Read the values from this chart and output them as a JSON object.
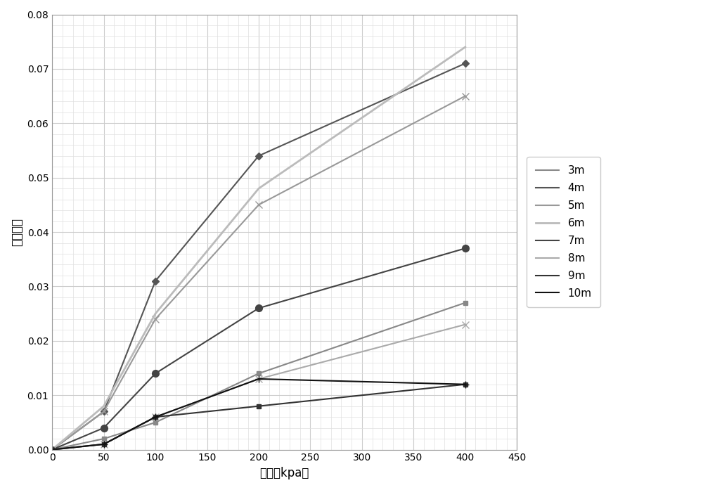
{
  "x": [
    0,
    50,
    100,
    200,
    400
  ],
  "series": {
    "3m": {
      "y": [
        0,
        0.002,
        0.005,
        0.014,
        0.027
      ],
      "color": "#888888",
      "marker": "s",
      "linewidth": 1.5,
      "markersize": 5
    },
    "4m": {
      "y": [
        0,
        0.007,
        0.031,
        0.054,
        0.071
      ],
      "color": "#555555",
      "marker": "D",
      "linewidth": 1.5,
      "markersize": 5
    },
    "5m": {
      "y": [
        0,
        0.007,
        0.024,
        0.045,
        0.065
      ],
      "color": "#999999",
      "marker": "x",
      "linewidth": 1.5,
      "markersize": 7
    },
    "6m": {
      "y": [
        0,
        0.008,
        0.025,
        0.048,
        0.074
      ],
      "color": "#bbbbbb",
      "marker": "None",
      "linewidth": 2.0,
      "markersize": 0
    },
    "7m": {
      "y": [
        0,
        0.004,
        0.014,
        0.026,
        0.037
      ],
      "color": "#444444",
      "marker": "o",
      "linewidth": 1.5,
      "markersize": 7
    },
    "8m": {
      "y": [
        0,
        0.001,
        0.006,
        0.013,
        0.023
      ],
      "color": "#aaaaaa",
      "marker": "x",
      "linewidth": 1.5,
      "markersize": 7
    },
    "9m": {
      "y": [
        0,
        0.001,
        0.006,
        0.008,
        0.012
      ],
      "color": "#333333",
      "marker": "s",
      "linewidth": 1.5,
      "markersize": 4
    },
    "10m": {
      "y": [
        0,
        0.001,
        0.006,
        0.013,
        0.012
      ],
      "color": "#111111",
      "marker": "+",
      "linewidth": 1.5,
      "markersize": 7
    }
  },
  "xlabel": "压力（kpa）",
  "ylabel": "湿陷系数",
  "xlim": [
    0,
    450
  ],
  "ylim": [
    0,
    0.08
  ],
  "xticks": [
    0,
    50,
    100,
    150,
    200,
    250,
    300,
    350,
    400,
    450
  ],
  "yticks": [
    0,
    0.01,
    0.02,
    0.03,
    0.04,
    0.05,
    0.06,
    0.07,
    0.08
  ],
  "grid_major_color": "#cccccc",
  "grid_minor_color": "#e0e0e0",
  "bg_color": "#ffffff",
  "legend_order": [
    "3m",
    "4m",
    "5m",
    "6m",
    "7m",
    "8m",
    "9m",
    "10m"
  ]
}
